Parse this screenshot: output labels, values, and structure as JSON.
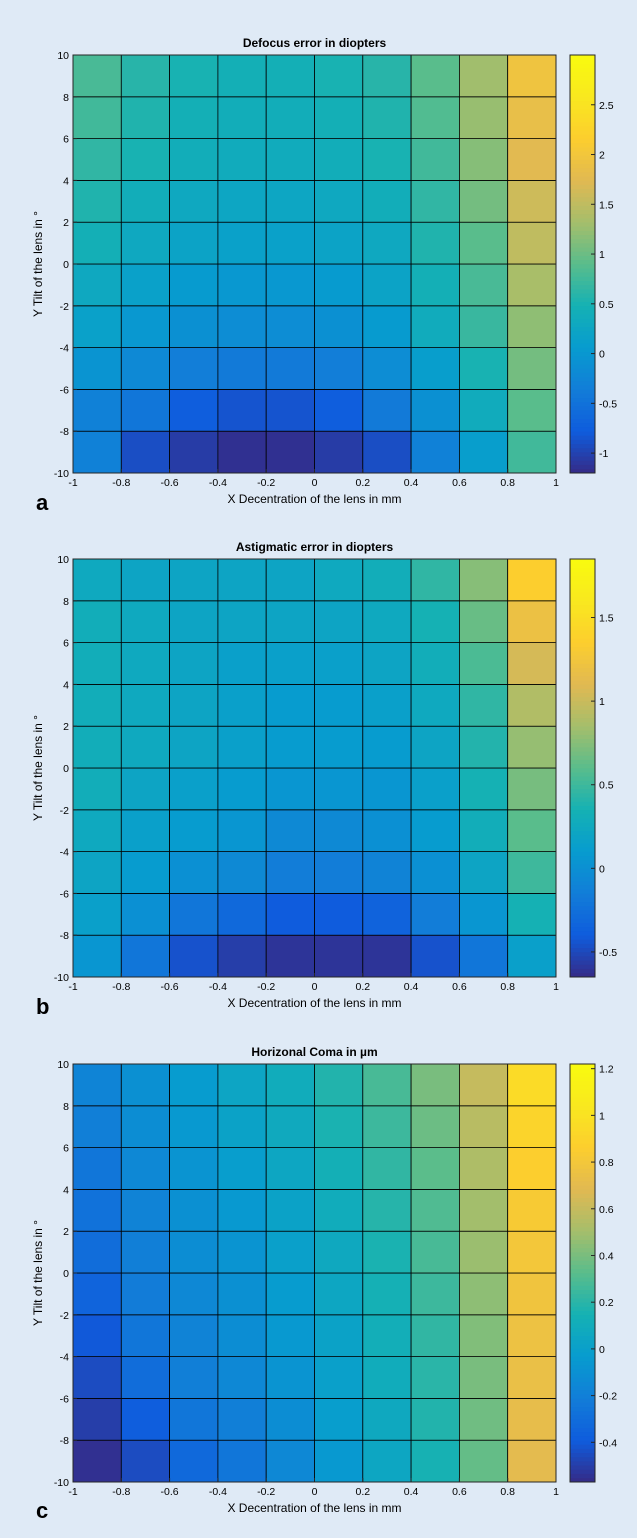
{
  "chart_data": [
    {
      "type": "heatmap",
      "panel_label": "a",
      "title": "Defocus error in diopters",
      "xlabel": "X Decentration of the lens in mm",
      "ylabel": "Y Tilt of the lens in °",
      "xlim": [
        -1,
        1
      ],
      "ylim": [
        -10,
        10
      ],
      "x_ticks": [
        "-1",
        "-0.8",
        "-0.6",
        "-0.4",
        "-0.2",
        "0",
        "0.2",
        "0.4",
        "0.6",
        "0.8",
        "1"
      ],
      "y_ticks": [
        "-10",
        "-8",
        "-6",
        "-4",
        "-2",
        "0",
        "2",
        "4",
        "6",
        "8",
        "10"
      ],
      "x_edges": [
        -1,
        -0.8,
        -0.6,
        -0.4,
        -0.2,
        0,
        0.2,
        0.4,
        0.6,
        0.8,
        1
      ],
      "y_edges": [
        -10,
        -8,
        -6,
        -4,
        -2,
        0,
        2,
        4,
        6,
        8,
        10
      ],
      "colormap": "parula",
      "clim": [
        -1.2,
        3.0
      ],
      "colorbar_ticks": [
        2.5,
        2,
        1.5,
        1,
        0.5,
        0,
        -0.5,
        -1
      ],
      "colorbar_tick_labels": [
        "2.5",
        "2",
        "1.5",
        "1",
        "0.5",
        "0",
        "-0.5",
        "-1"
      ],
      "grid": true,
      "values": [
        [
          -0.3,
          -0.9,
          -1.05,
          -1.15,
          -1.15,
          -1.05,
          -0.9,
          -0.3,
          0.1,
          0.75
        ],
        [
          -0.3,
          -0.45,
          -0.75,
          -0.85,
          -0.85,
          -0.75,
          -0.4,
          -0.1,
          0.35,
          0.9
        ],
        [
          -0.05,
          -0.2,
          -0.35,
          -0.4,
          -0.4,
          -0.35,
          -0.15,
          0.1,
          0.5,
          1.05
        ],
        [
          0.15,
          0.0,
          -0.1,
          -0.15,
          -0.15,
          -0.1,
          0.05,
          0.35,
          0.7,
          1.2
        ],
        [
          0.3,
          0.15,
          0.05,
          0.0,
          0.0,
          0.05,
          0.2,
          0.45,
          0.8,
          1.35
        ],
        [
          0.45,
          0.3,
          0.2,
          0.15,
          0.15,
          0.2,
          0.3,
          0.55,
          0.9,
          1.5
        ],
        [
          0.55,
          0.4,
          0.3,
          0.25,
          0.25,
          0.3,
          0.4,
          0.65,
          1.05,
          1.6
        ],
        [
          0.65,
          0.5,
          0.4,
          0.35,
          0.35,
          0.4,
          0.5,
          0.75,
          1.15,
          1.75
        ],
        [
          0.75,
          0.55,
          0.45,
          0.4,
          0.4,
          0.45,
          0.55,
          0.85,
          1.25,
          1.85
        ],
        [
          0.8,
          0.6,
          0.5,
          0.45,
          0.45,
          0.5,
          0.6,
          0.9,
          1.3,
          1.95
        ]
      ]
    },
    {
      "type": "heatmap",
      "panel_label": "b",
      "title": "Astigmatic error in diopters",
      "xlabel": "X Decentration of the lens in mm",
      "ylabel": "Y Tilt of the lens in °",
      "xlim": [
        -1,
        1
      ],
      "ylim": [
        -10,
        10
      ],
      "x_ticks": [
        "-1",
        "-0.8",
        "-0.6",
        "-0.4",
        "-0.2",
        "0",
        "0.2",
        "0.4",
        "0.6",
        "0.8",
        "1"
      ],
      "y_ticks": [
        "-10",
        "-8",
        "-6",
        "-4",
        "-2",
        "0",
        "2",
        "4",
        "6",
        "8",
        "10"
      ],
      "x_edges": [
        -1,
        -0.8,
        -0.6,
        -0.4,
        -0.2,
        0,
        0.2,
        0.4,
        0.6,
        0.8,
        1
      ],
      "y_edges": [
        -10,
        -8,
        -6,
        -4,
        -2,
        0,
        2,
        4,
        6,
        8,
        10
      ],
      "colormap": "parula",
      "clim": [
        -0.65,
        1.85
      ],
      "colorbar_ticks": [
        1.5,
        1,
        0.5,
        0,
        -0.5
      ],
      "colorbar_tick_labels": [
        "1.5",
        "1",
        "0.5",
        "0",
        "-0.5"
      ],
      "grid": true,
      "values": [
        [
          0.05,
          -0.2,
          -0.45,
          -0.55,
          -0.6,
          -0.6,
          -0.6,
          -0.45,
          -0.2,
          0.15
        ],
        [
          0.15,
          0.0,
          -0.2,
          -0.3,
          -0.4,
          -0.4,
          -0.35,
          -0.15,
          0.05,
          0.35
        ],
        [
          0.2,
          0.1,
          0.0,
          -0.05,
          -0.15,
          -0.15,
          -0.1,
          0.0,
          0.2,
          0.5
        ],
        [
          0.25,
          0.15,
          0.1,
          0.05,
          -0.05,
          -0.05,
          0.0,
          0.1,
          0.3,
          0.6
        ],
        [
          0.3,
          0.2,
          0.15,
          0.1,
          0.05,
          0.05,
          0.05,
          0.15,
          0.35,
          0.7
        ],
        [
          0.3,
          0.25,
          0.2,
          0.15,
          0.1,
          0.1,
          0.1,
          0.2,
          0.4,
          0.8
        ],
        [
          0.3,
          0.25,
          0.2,
          0.15,
          0.1,
          0.1,
          0.15,
          0.25,
          0.45,
          0.9
        ],
        [
          0.3,
          0.25,
          0.2,
          0.15,
          0.15,
          0.15,
          0.2,
          0.3,
          0.55,
          1.05
        ],
        [
          0.3,
          0.25,
          0.2,
          0.2,
          0.2,
          0.2,
          0.25,
          0.35,
          0.65,
          1.2
        ],
        [
          0.25,
          0.2,
          0.2,
          0.2,
          0.2,
          0.25,
          0.3,
          0.45,
          0.75,
          1.35
        ]
      ]
    },
    {
      "type": "heatmap",
      "panel_label": "c",
      "title": "Horizonal Coma in µm",
      "xlabel": "X Decentration of the lens in mm",
      "ylabel": "Y Tilt of the lens in °",
      "xlim": [
        -1,
        1
      ],
      "ylim": [
        -10,
        10
      ],
      "x_ticks": [
        "-1",
        "-0.8",
        "-0.6",
        "-0.4",
        "-0.2",
        "0",
        "0.2",
        "0.4",
        "0.6",
        "0.8",
        "1"
      ],
      "y_ticks": [
        "-10",
        "-8",
        "-6",
        "-4",
        "-2",
        "0",
        "2",
        "4",
        "6",
        "8",
        "10"
      ],
      "x_edges": [
        -1,
        -0.8,
        -0.6,
        -0.4,
        -0.2,
        0,
        0.2,
        0.4,
        0.6,
        0.8,
        1
      ],
      "y_edges": [
        -10,
        -8,
        -6,
        -4,
        -2,
        0,
        2,
        4,
        6,
        8,
        10
      ],
      "colormap": "parula",
      "clim": [
        -0.57,
        1.22
      ],
      "colorbar_ticks": [
        1.2,
        1,
        0.8,
        0.6,
        0.4,
        0.2,
        0,
        -0.2,
        -0.4
      ],
      "colorbar_tick_labels": [
        "1.2",
        "1",
        "0.8",
        "0.6",
        "0.4",
        "0.2",
        "0",
        "-0.2",
        "-0.4"
      ],
      "grid": true,
      "values": [
        [
          -0.55,
          -0.45,
          -0.32,
          -0.25,
          -0.15,
          -0.05,
          0.05,
          0.15,
          0.35,
          0.7
        ],
        [
          -0.5,
          -0.38,
          -0.25,
          -0.2,
          -0.12,
          -0.02,
          0.07,
          0.18,
          0.38,
          0.72
        ],
        [
          -0.45,
          -0.3,
          -0.2,
          -0.15,
          -0.08,
          0.0,
          0.1,
          0.2,
          0.4,
          0.74
        ],
        [
          -0.4,
          -0.25,
          -0.18,
          -0.12,
          -0.05,
          0.02,
          0.12,
          0.22,
          0.42,
          0.76
        ],
        [
          -0.35,
          -0.22,
          -0.15,
          -0.1,
          -0.03,
          0.05,
          0.14,
          0.25,
          0.45,
          0.78
        ],
        [
          -0.3,
          -0.2,
          -0.12,
          -0.08,
          0.0,
          0.07,
          0.16,
          0.28,
          0.48,
          0.8
        ],
        [
          -0.27,
          -0.18,
          -0.1,
          -0.05,
          0.02,
          0.1,
          0.19,
          0.3,
          0.5,
          0.83
        ],
        [
          -0.25,
          -0.15,
          -0.08,
          -0.02,
          0.05,
          0.13,
          0.22,
          0.33,
          0.53,
          0.86
        ],
        [
          -0.2,
          -0.12,
          -0.05,
          0.02,
          0.08,
          0.16,
          0.25,
          0.37,
          0.56,
          0.9
        ],
        [
          -0.17,
          -0.1,
          -0.03,
          0.04,
          0.1,
          0.18,
          0.28,
          0.4,
          0.6,
          0.95
        ]
      ]
    }
  ]
}
